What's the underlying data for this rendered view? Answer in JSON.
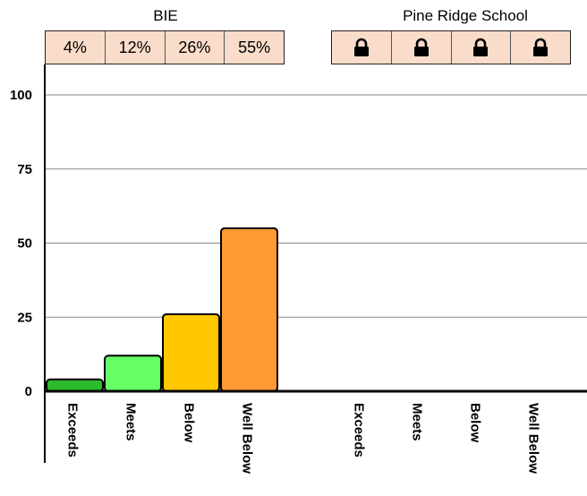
{
  "chart_data": {
    "type": "bar",
    "groups": [
      {
        "name": "BIE",
        "categories": [
          "Exceeds",
          "Meets",
          "Below",
          "Well Below"
        ],
        "values": [
          4,
          12,
          26,
          55
        ],
        "value_labels": [
          "4%",
          "12%",
          "26%",
          "55%"
        ],
        "locked": false
      },
      {
        "name": "Pine Ridge School",
        "categories": [
          "Exceeds",
          "Meets",
          "Below",
          "Well Below"
        ],
        "values": [
          null,
          null,
          null,
          null
        ],
        "value_labels": [
          "",
          "",
          "",
          ""
        ],
        "locked": true
      }
    ],
    "y_ticks": [
      "0",
      "25",
      "50",
      "75",
      "100"
    ],
    "ylim": [
      0,
      100
    ],
    "grid": true,
    "bar_colors": [
      "#2dbb2d",
      "#66ff66",
      "#ffc800",
      "#ff9933"
    ],
    "icons": {
      "locked_cell": "lock-icon"
    }
  }
}
